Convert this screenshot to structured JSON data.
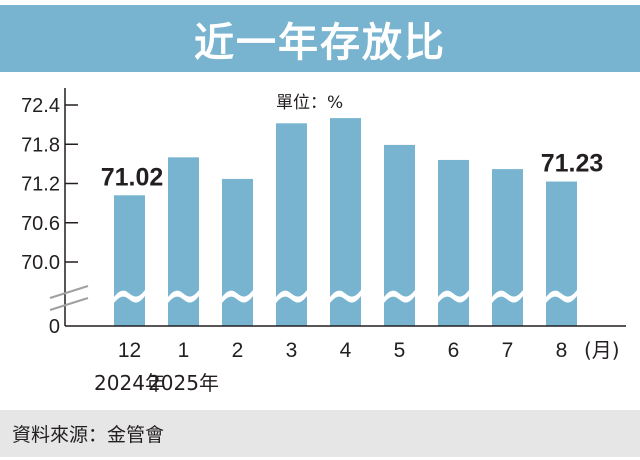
{
  "title": "近一年存放比",
  "unit_label": "單位：%",
  "source": "資料來源：金管會",
  "colors": {
    "bar": "#78b4d0",
    "title_band": "#78b4d0",
    "footer_band": "#e6e6e7",
    "text": "#231f20",
    "break_marks": "#a0a0a0"
  },
  "chart_data": {
    "type": "bar",
    "title": "近一年存放比",
    "xlabel": "(月)",
    "ylabel": "單位：%",
    "categories": [
      "12",
      "1",
      "2",
      "3",
      "4",
      "5",
      "6",
      "7",
      "8"
    ],
    "year_labels": [
      {
        "under": "12",
        "label": "2024年"
      },
      {
        "under": "1",
        "label": "2025年"
      }
    ],
    "values": [
      71.02,
      71.6,
      71.27,
      72.12,
      72.2,
      71.79,
      71.56,
      71.42,
      71.23
    ],
    "data_labels": [
      {
        "category": "12",
        "label": "71.02"
      },
      {
        "category": "8",
        "label": "71.23"
      }
    ],
    "yticks": [
      "72.4",
      "71.8",
      "71.2",
      "70.6",
      "70.0",
      "0"
    ],
    "ylim": [
      70.0,
      72.4
    ],
    "axis_break": true,
    "grid": false,
    "legend": null
  }
}
